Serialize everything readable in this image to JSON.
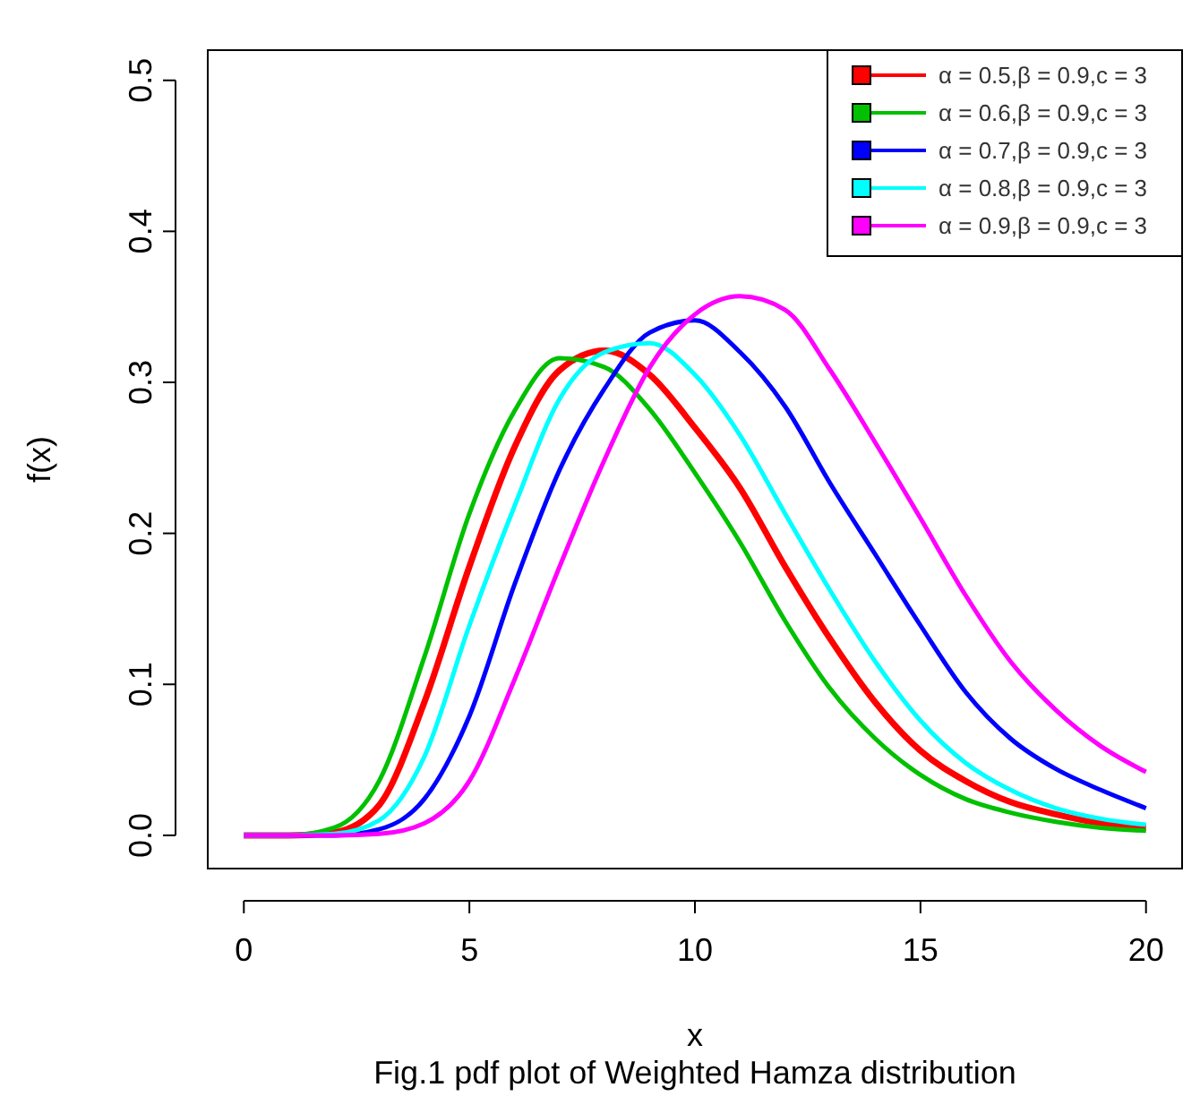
{
  "chart_data": {
    "type": "line",
    "xlabel": "x",
    "ylabel": "f(x)",
    "annotations": [
      "Fig.1 pdf plot of Weighted Hamza distribution"
    ],
    "x": [
      0,
      1,
      2,
      3,
      4,
      5,
      6,
      7,
      8,
      9,
      10,
      11,
      12,
      13,
      14,
      15,
      16,
      17,
      18,
      19,
      20
    ],
    "xlim": [
      -0.8,
      20.8
    ],
    "ylim": [
      -0.022,
      0.52
    ],
    "xticks": [
      0,
      5,
      10,
      15,
      20
    ],
    "yticks": [
      {
        "value": 0,
        "label": "0.0"
      },
      {
        "value": 0.1,
        "label": "0.1"
      },
      {
        "value": 0.2,
        "label": "0.2"
      },
      {
        "value": 0.3,
        "label": "0.3"
      },
      {
        "value": 0.4,
        "label": "0.4"
      },
      {
        "value": 0.5,
        "label": "0.5"
      }
    ],
    "grid": false,
    "legend": "top right",
    "line_style": "solid",
    "series": [
      {
        "name": "α = 0.5,β = 0.9,c = 3",
        "color": "#ff0000",
        "values": [
          0,
          0,
          0.002,
          0.02,
          0.088,
          0.178,
          0.257,
          0.308,
          0.321,
          0.305,
          0.27,
          0.23,
          0.178,
          0.13,
          0.088,
          0.056,
          0.036,
          0.022,
          0.014,
          0.008,
          0.005
        ]
      },
      {
        "name": "α = 0.6,β = 0.9,c = 3",
        "color": "#00c000",
        "values": [
          0,
          0,
          0.005,
          0.036,
          0.118,
          0.213,
          0.281,
          0.316,
          0.31,
          0.282,
          0.24,
          0.194,
          0.142,
          0.097,
          0.064,
          0.04,
          0.024,
          0.015,
          0.009,
          0.005,
          0.003
        ]
      },
      {
        "name": "α = 0.7,β = 0.9,c = 3",
        "color": "#0000ff",
        "values": [
          0,
          0,
          0,
          0.004,
          0.024,
          0.079,
          0.166,
          0.242,
          0.296,
          0.333,
          0.341,
          0.32,
          0.284,
          0.233,
          0.186,
          0.139,
          0.095,
          0.064,
          0.044,
          0.03,
          0.018
        ]
      },
      {
        "name": "α = 0.8,β = 0.9,c = 3",
        "color": "#00ffff",
        "values": [
          0,
          0,
          0.001,
          0.01,
          0.052,
          0.139,
          0.218,
          0.289,
          0.32,
          0.326,
          0.305,
          0.265,
          0.213,
          0.162,
          0.115,
          0.076,
          0.048,
          0.03,
          0.018,
          0.011,
          0.007
        ]
      },
      {
        "name": "α = 0.9,β = 0.9,c = 3",
        "color": "#ff00ff",
        "values": [
          0,
          0,
          0,
          0.001,
          0.008,
          0.036,
          0.103,
          0.178,
          0.249,
          0.31,
          0.345,
          0.357,
          0.348,
          0.308,
          0.26,
          0.21,
          0.159,
          0.115,
          0.083,
          0.059,
          0.042
        ]
      }
    ]
  }
}
